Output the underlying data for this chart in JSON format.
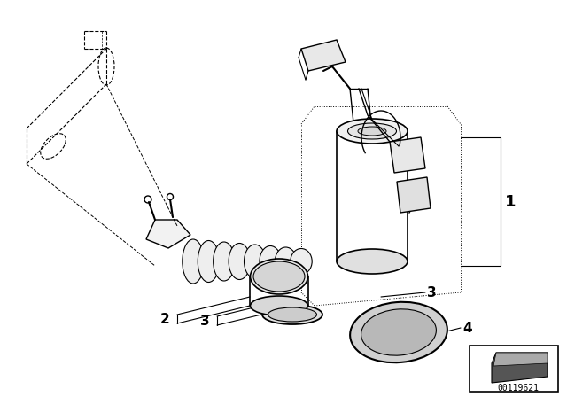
{
  "background_color": "#ffffff",
  "watermark": "00119621",
  "part1_label": "1",
  "part2_label": "2",
  "part3_label": "3",
  "part4_label": "4",
  "line_color": "#000000",
  "fill_light": "#f0f0f0",
  "fill_medium": "#d8d8d8",
  "fill_dark": "#888888"
}
